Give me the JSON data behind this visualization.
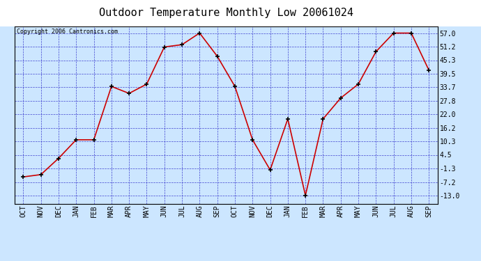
{
  "title": "Outdoor Temperature Monthly Low 20061024",
  "copyright": "Copyright 2006 Cantronics.com",
  "x_labels": [
    "OCT",
    "NOV",
    "DEC",
    "JAN",
    "FEB",
    "MAR",
    "APR",
    "MAY",
    "JUN",
    "JUL",
    "AUG",
    "SEP",
    "OCT",
    "NOV",
    "DEC",
    "JAN",
    "FEB",
    "MAR",
    "APR",
    "MAY",
    "JUN",
    "JUL",
    "AUG",
    "SEP"
  ],
  "y_values": [
    -5.0,
    -4.0,
    3.0,
    11.0,
    11.0,
    34.0,
    31.0,
    35.0,
    51.0,
    52.0,
    57.0,
    47.0,
    34.0,
    11.0,
    -2.0,
    20.0,
    -13.0,
    20.0,
    29.0,
    35.0,
    49.0,
    57.0,
    57.0,
    41.0
  ],
  "y_ticks": [
    -13.0,
    -7.2,
    -1.3,
    4.5,
    10.3,
    16.2,
    22.0,
    27.8,
    33.7,
    39.5,
    45.3,
    51.2,
    57.0
  ],
  "y_min": -16.5,
  "y_max": 60.0,
  "line_color": "#cc0000",
  "bg_color": "#cce6ff",
  "grid_color": "#3333cc",
  "title_fontsize": 11,
  "tick_fontsize": 7,
  "copyright_fontsize": 6
}
